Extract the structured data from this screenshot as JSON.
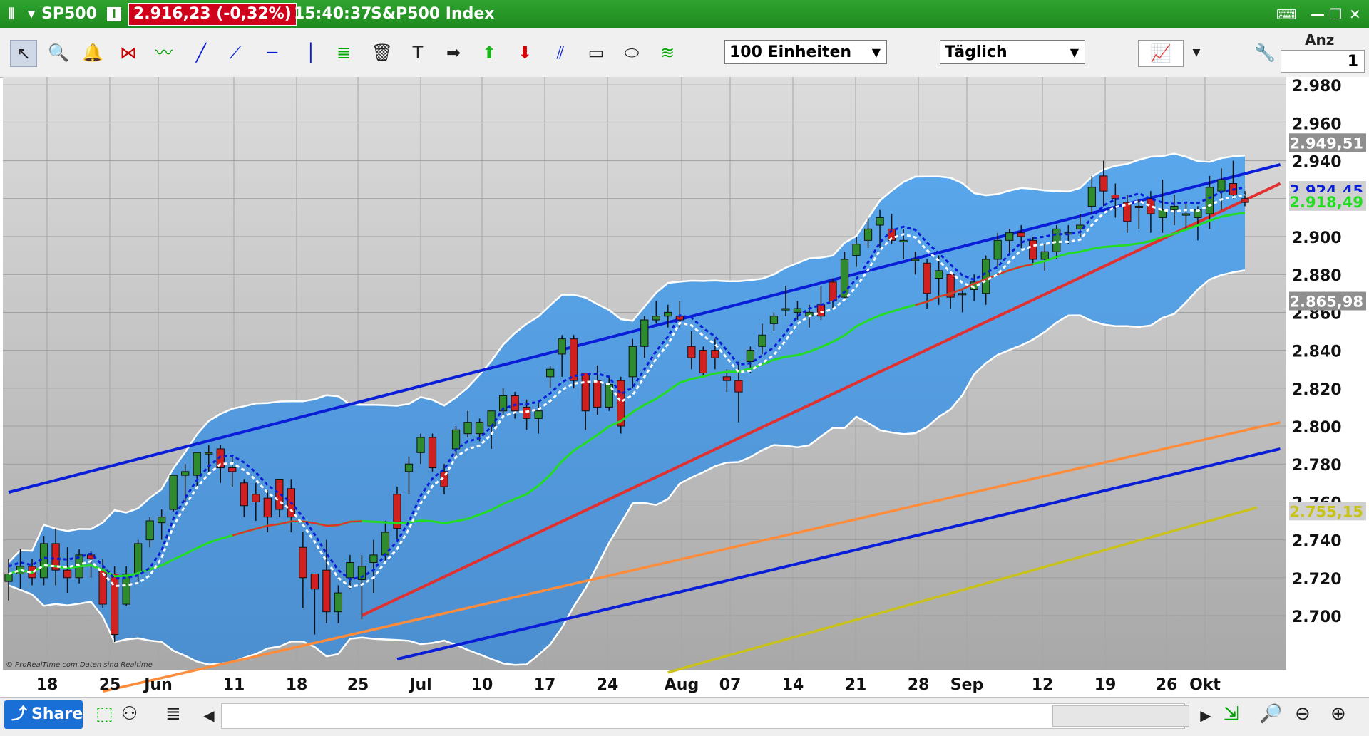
{
  "header": {
    "symbol": "SP500",
    "price": "2.916,23 (-0,32%)",
    "time": "15:40:37",
    "name": "S&P500 Index"
  },
  "toolbar": {
    "units_value": "100 Einheiten",
    "period_value": "Täglich",
    "anz_label": "Anz",
    "anz_value": "1"
  },
  "bottom": {
    "share_label": "Share"
  },
  "colors": {
    "background_chart": "#bdbdbd",
    "band_fill": "#5aa7e8",
    "channel_blue": "#0a1ed8",
    "support_red": "#e03030",
    "orange_line": "#ff8c3a",
    "yellow_line": "#c8c21a",
    "ma_green": "#22dd22",
    "candle_up": "#2e8b2e",
    "candle_down": "#d21f1f"
  },
  "chart_data": {
    "type": "candlestick",
    "title": "SP500",
    "y_ticks": [
      "2.980",
      "2.960",
      "2.940",
      "2.920",
      "2.900",
      "2.880",
      "2.860",
      "2.840",
      "2.820",
      "2.800",
      "2.780",
      "2.760",
      "2.740",
      "2.720",
      "2.700"
    ],
    "ylim": [
      2680,
      2990
    ],
    "x_labels": [
      "18",
      "25",
      "Jun",
      "11",
      "18",
      "25",
      "Jul",
      "10",
      "17",
      "24",
      "Aug",
      "07",
      "14",
      "21",
      "28",
      "Sep",
      "12",
      "19",
      "26",
      "Okt"
    ],
    "price_tags": [
      {
        "label": "2.949,51",
        "color": "#ffffff",
        "bg": "#8e8e8e",
        "value": 2949.51
      },
      {
        "label": "2.924,45",
        "color": "#0a1ed8",
        "bg": "#d0d0d0",
        "value": 2924.45
      },
      {
        "label": "2.918,49",
        "color": "#22dd22",
        "bg": "#d0d0d0",
        "value": 2918.49
      },
      {
        "label": "2.865,98",
        "color": "#ffffff",
        "bg": "#8e8e8e",
        "value": 2865.98
      },
      {
        "label": "2.755,15",
        "color": "#c8c21a",
        "bg": "#d0d0d0",
        "value": 2755.15
      }
    ],
    "watermark": "© ProRealTime.com  Daten sind Realtime",
    "candles": [
      [
        2718,
        2730,
        2708,
        2722
      ],
      [
        2722,
        2735,
        2714,
        2726
      ],
      [
        2726,
        2730,
        2716,
        2720
      ],
      [
        2720,
        2742,
        2716,
        2738
      ],
      [
        2738,
        2746,
        2716,
        2724
      ],
      [
        2724,
        2736,
        2712,
        2720
      ],
      [
        2720,
        2735,
        2717,
        2732
      ],
      [
        2732,
        2734,
        2720,
        2730
      ],
      [
        2724,
        2730,
        2704,
        2706
      ],
      [
        2722,
        2726,
        2686,
        2690
      ],
      [
        2706,
        2726,
        2705,
        2722
      ],
      [
        2722,
        2740,
        2718,
        2738
      ],
      [
        2740,
        2752,
        2736,
        2750
      ],
      [
        2749,
        2756,
        2740,
        2752
      ],
      [
        2756,
        2774,
        2755,
        2774
      ],
      [
        2774,
        2780,
        2760,
        2776
      ],
      [
        2774,
        2786,
        2768,
        2786
      ],
      [
        2786,
        2790,
        2776,
        2786
      ],
      [
        2788,
        2790,
        2770,
        2778
      ],
      [
        2778,
        2784,
        2768,
        2776
      ],
      [
        2770,
        2772,
        2752,
        2758
      ],
      [
        2764,
        2770,
        2750,
        2760
      ],
      [
        2762,
        2766,
        2744,
        2752
      ],
      [
        2772,
        2772,
        2752,
        2756
      ],
      [
        2767,
        2772,
        2744,
        2752
      ],
      [
        2736,
        2744,
        2704,
        2720
      ],
      [
        2722,
        2722,
        2690,
        2714
      ],
      [
        2724,
        2740,
        2696,
        2702
      ],
      [
        2702,
        2716,
        2696,
        2712
      ],
      [
        2720,
        2732,
        2714,
        2728
      ],
      [
        2719,
        2732,
        2698,
        2726
      ],
      [
        2728,
        2740,
        2712,
        2732
      ],
      [
        2732,
        2750,
        2728,
        2744
      ],
      [
        2764,
        2768,
        2740,
        2746
      ],
      [
        2776,
        2784,
        2764,
        2780
      ],
      [
        2786,
        2796,
        2780,
        2794
      ],
      [
        2794,
        2796,
        2776,
        2778
      ],
      [
        2776,
        2780,
        2764,
        2768
      ],
      [
        2788,
        2800,
        2784,
        2798
      ],
      [
        2796,
        2808,
        2794,
        2802
      ],
      [
        2796,
        2804,
        2792,
        2802
      ],
      [
        2800,
        2808,
        2788,
        2808
      ],
      [
        2808,
        2820,
        2806,
        2816
      ],
      [
        2816,
        2818,
        2804,
        2808
      ],
      [
        2810,
        2814,
        2798,
        2804
      ],
      [
        2804,
        2812,
        2796,
        2808
      ],
      [
        2826,
        2832,
        2820,
        2830
      ],
      [
        2838,
        2848,
        2826,
        2846
      ],
      [
        2846,
        2848,
        2820,
        2824
      ],
      [
        2828,
        2828,
        2798,
        2808
      ],
      [
        2824,
        2832,
        2806,
        2810
      ],
      [
        2810,
        2826,
        2808,
        2822
      ],
      [
        2824,
        2826,
        2796,
        2800
      ],
      [
        2826,
        2846,
        2820,
        2842
      ],
      [
        2842,
        2858,
        2836,
        2856
      ],
      [
        2856,
        2866,
        2854,
        2858
      ],
      [
        2858,
        2864,
        2852,
        2860
      ],
      [
        2858,
        2866,
        2852,
        2856
      ],
      [
        2842,
        2850,
        2830,
        2836
      ],
      [
        2840,
        2842,
        2826,
        2828
      ],
      [
        2840,
        2846,
        2830,
        2836
      ],
      [
        2826,
        2830,
        2818,
        2824
      ],
      [
        2824,
        2834,
        2802,
        2818
      ],
      [
        2834,
        2842,
        2828,
        2840
      ],
      [
        2842,
        2854,
        2838,
        2848
      ],
      [
        2854,
        2860,
        2850,
        2858
      ],
      [
        2862,
        2874,
        2858,
        2862
      ],
      [
        2860,
        2866,
        2856,
        2862
      ],
      [
        2858,
        2864,
        2852,
        2860
      ],
      [
        2864,
        2874,
        2856,
        2858
      ],
      [
        2876,
        2878,
        2862,
        2866
      ],
      [
        2868,
        2892,
        2866,
        2888
      ],
      [
        2890,
        2900,
        2884,
        2896
      ],
      [
        2898,
        2910,
        2894,
        2904
      ],
      [
        2906,
        2914,
        2894,
        2910
      ],
      [
        2904,
        2912,
        2896,
        2898
      ],
      [
        2898,
        2904,
        2888,
        2898
      ],
      [
        2888,
        2892,
        2880,
        2888
      ],
      [
        2886,
        2888,
        2862,
        2870
      ],
      [
        2878,
        2890,
        2864,
        2882
      ],
      [
        2880,
        2882,
        2862,
        2868
      ],
      [
        2870,
        2872,
        2860,
        2870
      ],
      [
        2872,
        2880,
        2866,
        2876
      ],
      [
        2870,
        2890,
        2864,
        2888
      ],
      [
        2888,
        2902,
        2884,
        2898
      ],
      [
        2898,
        2904,
        2890,
        2902
      ],
      [
        2902,
        2906,
        2894,
        2900
      ],
      [
        2898,
        2900,
        2886,
        2888
      ],
      [
        2888,
        2896,
        2882,
        2892
      ],
      [
        2892,
        2906,
        2888,
        2904
      ],
      [
        2902,
        2906,
        2896,
        2902
      ],
      [
        2904,
        2912,
        2900,
        2906
      ],
      [
        2916,
        2932,
        2912,
        2926
      ],
      [
        2932,
        2940,
        2916,
        2924
      ],
      [
        2922,
        2928,
        2910,
        2920
      ],
      [
        2918,
        2922,
        2902,
        2908
      ],
      [
        2916,
        2920,
        2904,
        2916
      ],
      [
        2920,
        2924,
        2902,
        2912
      ],
      [
        2910,
        2930,
        2902,
        2914
      ],
      [
        2914,
        2922,
        2906,
        2916
      ],
      [
        2912,
        2918,
        2904,
        2912
      ],
      [
        2910,
        2916,
        2898,
        2914
      ],
      [
        2912,
        2932,
        2904,
        2926
      ],
      [
        2924,
        2936,
        2914,
        2930
      ],
      [
        2928,
        2940,
        2920,
        2922
      ],
      [
        2920,
        2924,
        2916,
        2918
      ]
    ]
  }
}
